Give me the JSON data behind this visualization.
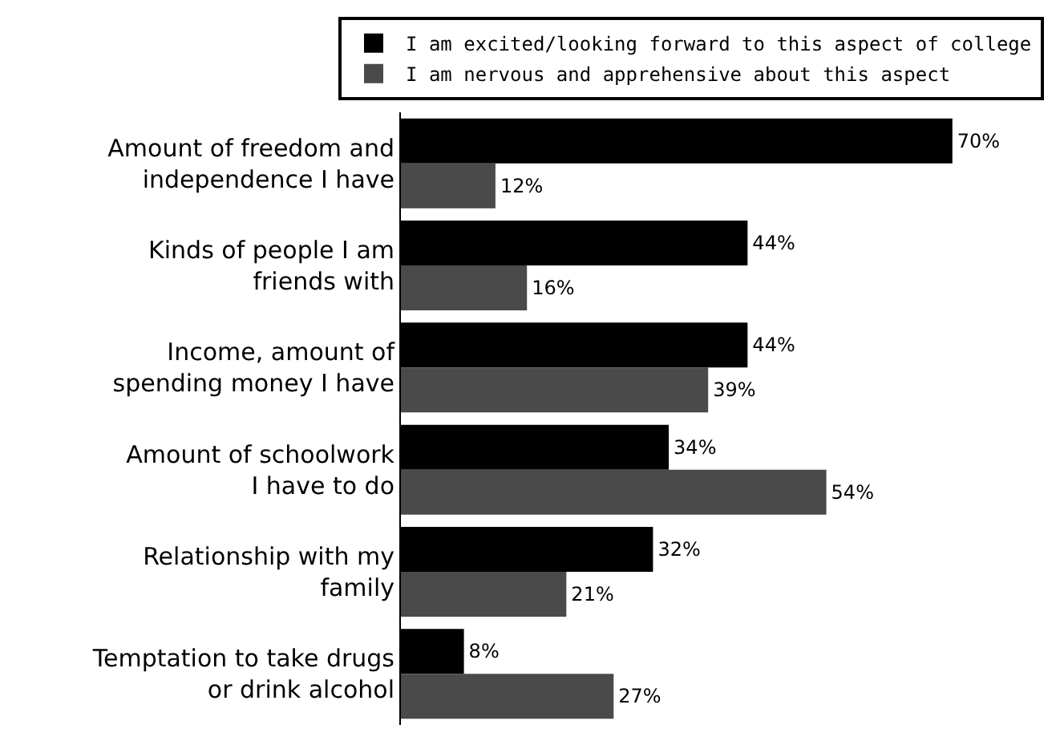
{
  "chart_data": {
    "type": "bar",
    "orientation": "horizontal",
    "categories": [
      "Amount of freedom and\nindependence I have",
      "Kinds of people I am\nfriends with",
      "Income, amount of\nspending money I have",
      "Amount of schoolwork\nI have to do",
      "Relationship with my\nfamily",
      "Temptation to take drugs\nor drink alcohol"
    ],
    "series": [
      {
        "name": "I am excited/looking forward to this aspect of college",
        "color": "#000000",
        "values": [
          70,
          44,
          44,
          34,
          32,
          8
        ],
        "value_labels": [
          "70%",
          "44%",
          "44%",
          "34%",
          "32%",
          "8%"
        ]
      },
      {
        "name": "I am nervous and apprehensive about this aspect",
        "color": "#4a4a4a",
        "values": [
          12,
          16,
          39,
          54,
          21,
          27
        ],
        "value_labels": [
          "12%",
          "16%",
          "39%",
          "54%",
          "21%",
          "27%"
        ]
      }
    ],
    "legend": "top"
  }
}
